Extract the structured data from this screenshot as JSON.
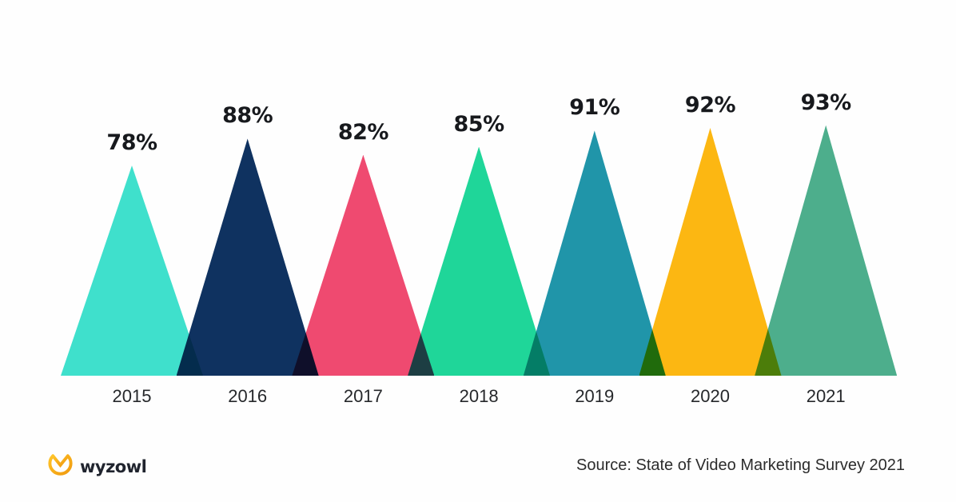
{
  "chart_data": {
    "type": "bar",
    "variant": "overlapping-triangle-peaks",
    "title": "",
    "xlabel": "",
    "ylabel": "",
    "categories": [
      "2015",
      "2016",
      "2017",
      "2018",
      "2019",
      "2020",
      "2021"
    ],
    "values": [
      78,
      88,
      82,
      85,
      91,
      92,
      93
    ],
    "value_labels": [
      "78%",
      "88%",
      "82%",
      "85%",
      "91%",
      "92%",
      "93%"
    ],
    "colors": [
      "#3FE0CC",
      "#0F3260",
      "#EF4A70",
      "#1FD699",
      "#2095A9",
      "#FCB712",
      "#4DAE8C"
    ],
    "ylim": [
      0,
      100
    ],
    "grid": false,
    "legend": false,
    "overlap_blend": "multiply",
    "background": "#FEFEFE",
    "label_color": "#17191D",
    "axis_label_color": "#26282B"
  },
  "footer": {
    "brand": {
      "name": "wyzowl",
      "icon": "wyzowl-owl-icon",
      "icon_color_top": "#FFC429",
      "icon_color_bottom": "#F0990D",
      "text_color": "#20242E"
    },
    "source_text": "Source: State of Video Marketing Survey 2021"
  }
}
